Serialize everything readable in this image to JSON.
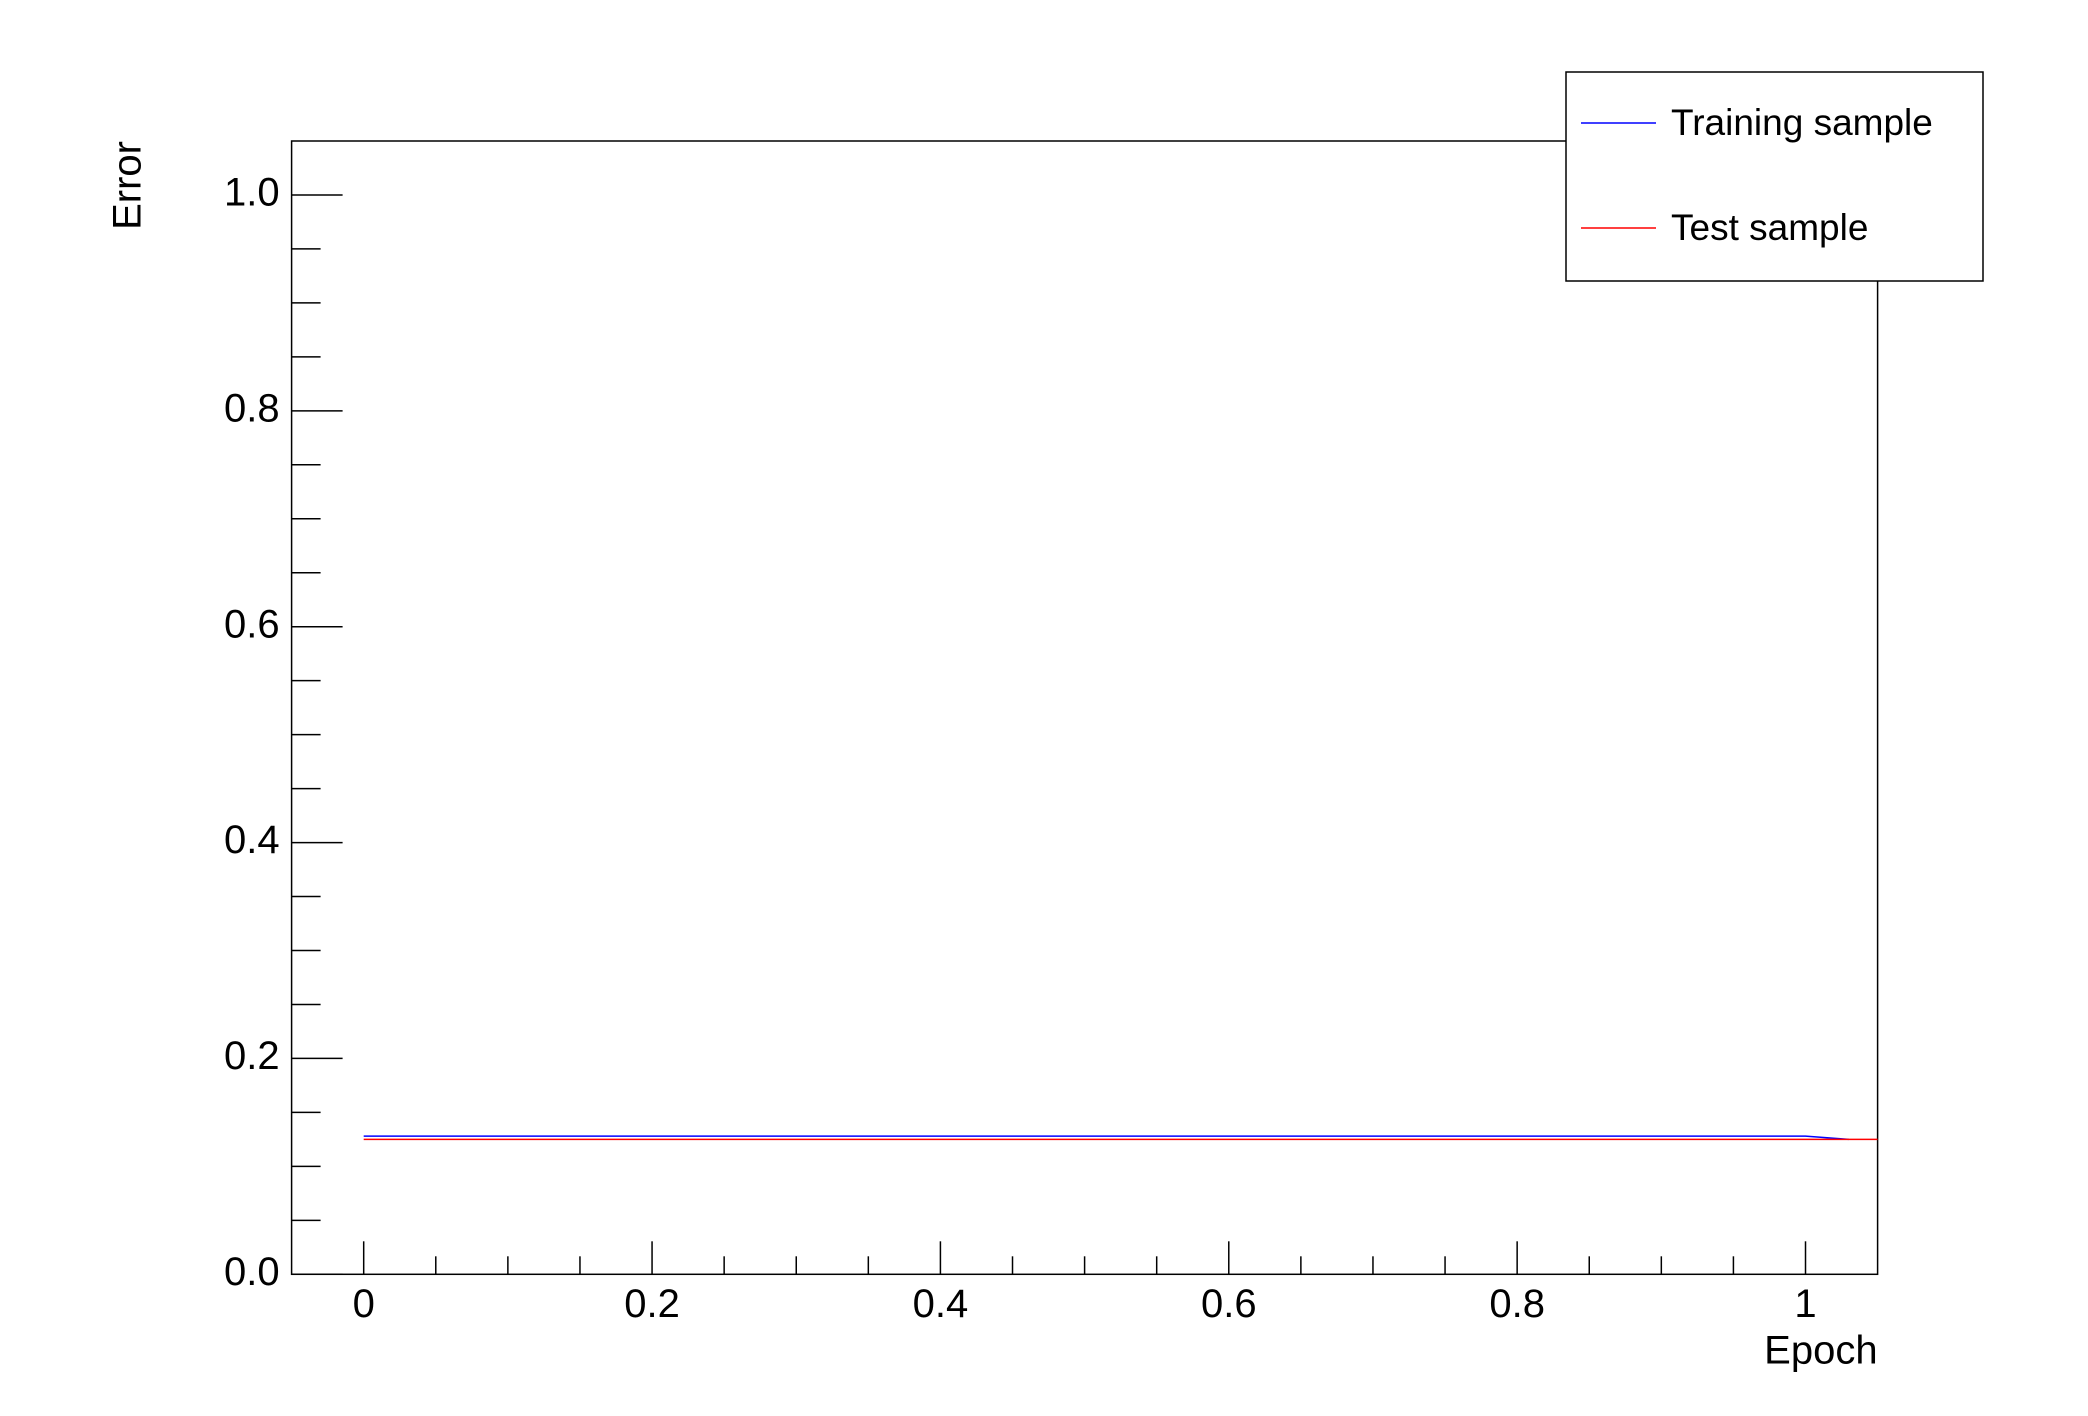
{
  "chart_data": {
    "type": "line",
    "x_label": "Epoch",
    "y_label": "Error",
    "xlim": [
      -0.05,
      1.05
    ],
    "ylim": [
      0,
      1.05
    ],
    "xticks": [
      0,
      0.2,
      0.4,
      0.6,
      0.8,
      1
    ],
    "yticks": [
      {
        "value": 0,
        "label": "0.0"
      },
      0.2,
      0.4,
      0.6,
      0.8,
      {
        "value": 1,
        "label": "1.0"
      }
    ],
    "legend": "top-right",
    "series": [
      {
        "name": "Training sample",
        "color": "#0000ff",
        "x": [
          0,
          1,
          1.03
        ],
        "values": [
          0.128,
          0.128,
          0.125
        ]
      },
      {
        "name": "Test sample",
        "color": "#ff0000",
        "x": [
          0,
          1.05
        ],
        "values": [
          0.125,
          0.125
        ]
      }
    ]
  }
}
